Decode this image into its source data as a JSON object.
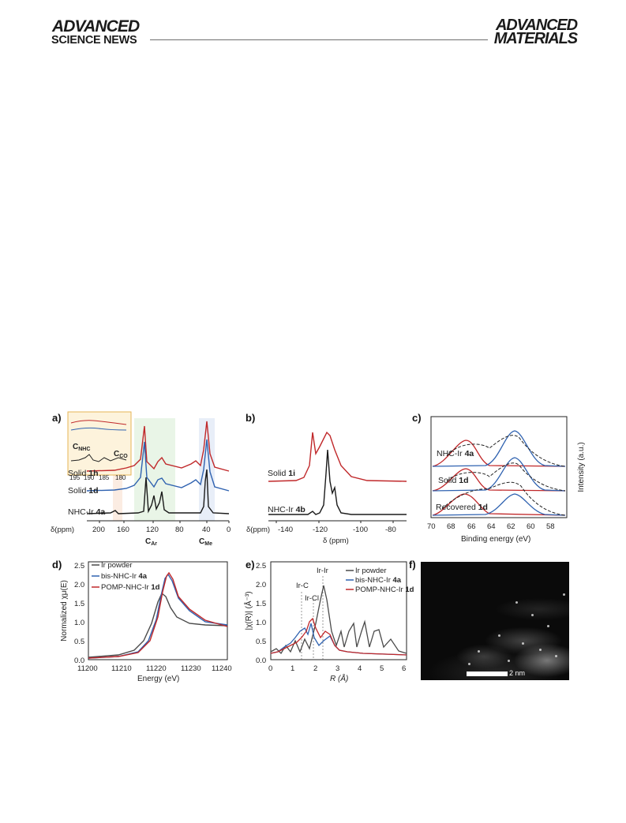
{
  "header": {
    "left_brand_top": "ADVANCED",
    "left_brand_bottom": "SCIENCE NEWS",
    "right_brand_line1": "ADVANCED",
    "right_brand_line2": "MATERIALS"
  },
  "panels": {
    "a": {
      "label": "a)",
      "xlabel": "δ(ppm)",
      "xticks": [
        "200",
        "160",
        "120",
        "80",
        "40",
        "0"
      ],
      "series_labels": [
        "Solid ",
        "1h",
        "Solid ",
        "1d",
        "NHC-Ir ",
        "4a"
      ],
      "bottom_labels": [
        "C",
        "Ar",
        "C",
        "Me"
      ],
      "inset_labels": [
        "C",
        "NHC",
        "C",
        "CO"
      ],
      "inset_ticks": [
        "195",
        "190",
        "185",
        "180"
      ]
    },
    "b": {
      "label": "b)",
      "xlabel_left": "δ(ppm)",
      "xlabel": "δ (ppm)",
      "xticks": [
        "-140",
        "-120",
        "-100",
        "-80"
      ],
      "series_1_text": "Solid ",
      "series_1_bold": "1i",
      "series_2_text": "NHC-Ir ",
      "series_2_bold": "4b"
    },
    "c": {
      "label": "c)",
      "xlabel": "Binding energy (eV)",
      "ylabel": "Intensity (a.u.)",
      "xticks": [
        "70",
        "68",
        "66",
        "64",
        "62",
        "60",
        "58"
      ],
      "series": [
        {
          "text": "NHC-Ir ",
          "bold": "4a"
        },
        {
          "text": "Solid ",
          "bold": "1d"
        },
        {
          "text": "Recovered ",
          "bold": "1d"
        }
      ]
    },
    "d": {
      "label": "d)",
      "xlabel": "Energy (eV)",
      "ylabel": "Normalized χμ(E)",
      "xticks": [
        "11200",
        "11210",
        "11220",
        "11230",
        "11240"
      ],
      "yticks": [
        "0.0",
        "0.5",
        "1.0",
        "1.5",
        "2.0",
        "2.5"
      ],
      "legend": [
        {
          "text": "Ir powder",
          "bold": "",
          "color": "#4a4a4a"
        },
        {
          "text": "bis-NHC-Ir ",
          "bold": "4a",
          "color": "#2f62b0"
        },
        {
          "text": "POMP-NHC-Ir ",
          "bold": "1d",
          "color": "#c0282a"
        }
      ]
    },
    "e": {
      "label": "e)",
      "xlabel": "R (Å)",
      "ylabel": "|χ(R)| (Å⁻³)",
      "xticks": [
        "0",
        "1",
        "2",
        "3",
        "4",
        "5",
        "6"
      ],
      "yticks": [
        "0.0",
        "0.5",
        "1.0",
        "1.5",
        "2.0",
        "2.5"
      ],
      "annotations": [
        "Ir-Ir",
        "Ir-C",
        "Ir-Cl"
      ],
      "legend": [
        {
          "text": "Ir powder",
          "bold": "",
          "color": "#4a4a4a"
        },
        {
          "text": "bis-NHC-Ir ",
          "bold": "4a",
          "color": "#2f62b0"
        },
        {
          "text": "POMP-NHC-Ir ",
          "bold": "1d",
          "color": "#c0282a"
        }
      ]
    },
    "f": {
      "label": "f)",
      "scalebar": "2 nm"
    }
  },
  "colors": {
    "red": "#c0282a",
    "blue": "#2f62b0",
    "black": "#1a1a1a",
    "gray": "#4a4a4a"
  }
}
